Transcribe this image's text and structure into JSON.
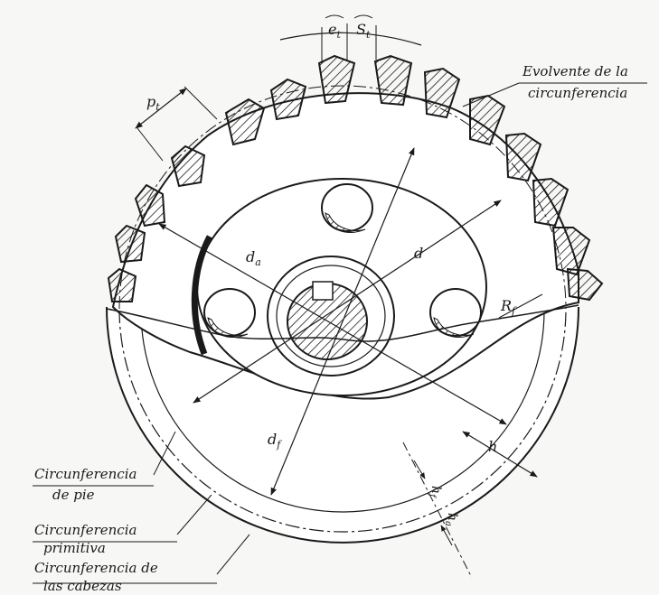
{
  "labels": {
    "evolvente_line1": "Evolvente de la",
    "evolvente_line2": "circunferencia",
    "pie_line1": "Circunferencia",
    "pie_line2": "de pie",
    "primitiva_line1": "Circunferencia",
    "primitiva_line2": "primitiva",
    "cabezas_line1": "Circunferencia de",
    "cabezas_line2": "las cabezas"
  },
  "dimensions": {
    "e": "e",
    "e_sub": "t",
    "s": "S",
    "s_sub": "t",
    "p": "p",
    "p_sub": "t",
    "da": "d",
    "da_sub": "a",
    "d": "d",
    "df": "d",
    "df_sub": "f",
    "rf": "R",
    "rf_sub": "f",
    "h": "h",
    "hf": "h",
    "hf_sub": "f",
    "ha": "h",
    "ha_sub": "a"
  },
  "colors": {
    "ink": "#1a1a1a",
    "paper": "#f7f7f5"
  }
}
